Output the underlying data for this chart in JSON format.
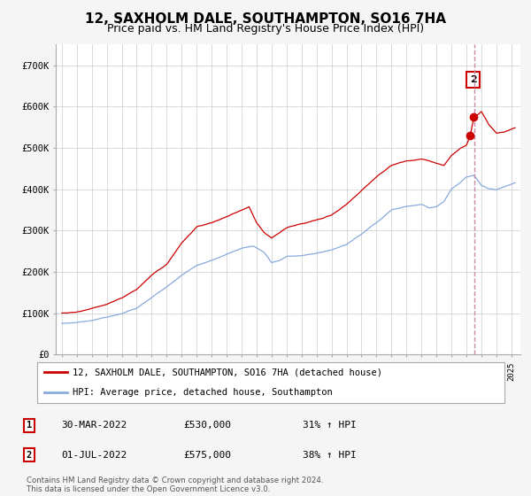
{
  "title": "12, SAXHOLM DALE, SOUTHAMPTON, SO16 7HA",
  "subtitle": "Price paid vs. HM Land Registry's House Price Index (HPI)",
  "title_fontsize": 11,
  "subtitle_fontsize": 9,
  "legend_line1": "12, SAXHOLM DALE, SOUTHAMPTON, SO16 7HA (detached house)",
  "legend_line2": "HPI: Average price, detached house, Southampton",
  "red_color": "#cc0000",
  "blue_color": "#88aadd",
  "dashed_color": "#cc88aa",
  "table_rows": [
    {
      "num": "1",
      "date": "30-MAR-2022",
      "price": "£530,000",
      "hpi": "31% ↑ HPI"
    },
    {
      "num": "2",
      "date": "01-JUL-2022",
      "price": "£575,000",
      "hpi": "38% ↑ HPI"
    }
  ],
  "footnote": "Contains HM Land Registry data © Crown copyright and database right 2024.\nThis data is licensed under the Open Government Licence v3.0.",
  "ylim": [
    0,
    750000
  ],
  "yticks": [
    0,
    100000,
    200000,
    300000,
    400000,
    500000,
    600000,
    700000
  ],
  "ytick_labels": [
    "£0",
    "£100K",
    "£200K",
    "£300K",
    "£400K",
    "£500K",
    "£600K",
    "£700K"
  ],
  "sale1_date": 2022.25,
  "sale1_price": 530000,
  "sale2_date": 2022.5,
  "sale2_price": 575000,
  "vline_date": 2022.5,
  "background_color": "#f5f5f5",
  "plot_bg": "#ffffff",
  "hpi_anchors_x": [
    1995,
    1996,
    1997,
    1998,
    1999,
    2000,
    2001,
    2002,
    2003,
    2004,
    2005,
    2006,
    2007,
    2007.8,
    2008.5,
    2009,
    2009.5,
    2010,
    2011,
    2012,
    2013,
    2014,
    2015,
    2016,
    2017,
    2018,
    2019,
    2019.5,
    2020,
    2020.5,
    2021,
    2021.5,
    2022,
    2022.5,
    2023,
    2023.5,
    2024,
    2024.5,
    2025.2
  ],
  "hpi_anchors_y": [
    75000,
    78000,
    83000,
    92000,
    102000,
    115000,
    140000,
    165000,
    195000,
    218000,
    230000,
    245000,
    260000,
    265000,
    250000,
    225000,
    230000,
    240000,
    243000,
    248000,
    255000,
    268000,
    292000,
    318000,
    348000,
    356000,
    360000,
    352000,
    355000,
    368000,
    398000,
    412000,
    428000,
    432000,
    408000,
    400000,
    398000,
    405000,
    415000
  ],
  "red_anchors_x": [
    1995,
    1996,
    1997,
    1998,
    1999,
    2000,
    2001,
    2002,
    2003,
    2004,
    2005,
    2006,
    2007,
    2007.5,
    2008,
    2008.5,
    2009,
    2009.5,
    2010,
    2011,
    2012,
    2013,
    2014,
    2015,
    2016,
    2017,
    2018,
    2019,
    2020,
    2020.5,
    2021,
    2021.5,
    2022.0,
    2022.25,
    2022.5,
    2023,
    2023.5,
    2024,
    2024.5,
    2025.2
  ],
  "red_anchors_y": [
    100000,
    104000,
    112000,
    122000,
    138000,
    158000,
    192000,
    218000,
    270000,
    308000,
    318000,
    332000,
    348000,
    356000,
    318000,
    295000,
    280000,
    292000,
    305000,
    316000,
    325000,
    338000,
    365000,
    398000,
    432000,
    458000,
    468000,
    473000,
    463000,
    458000,
    482000,
    498000,
    508000,
    530000,
    575000,
    590000,
    558000,
    538000,
    540000,
    550000
  ]
}
